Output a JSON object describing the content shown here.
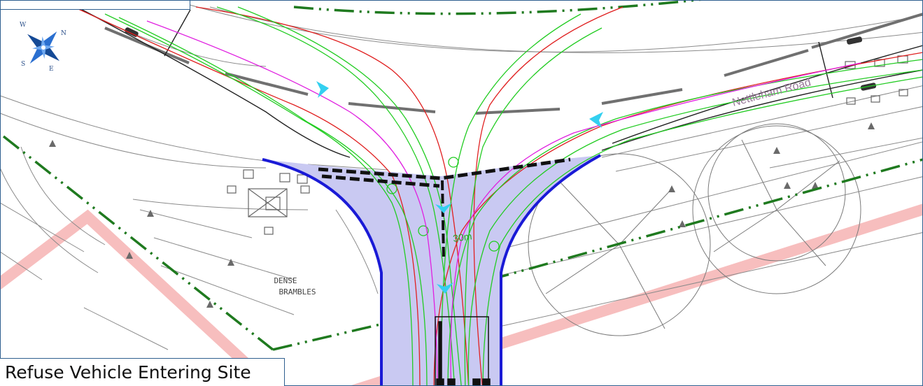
{
  "caption": "Refuse Vehicle Entering Site",
  "labels": {
    "road_name": "Nettleham Road",
    "vegetation_line1": "DENSE",
    "vegetation_line2": "BRAMBLES",
    "dimension": "30m"
  },
  "compass": {
    "north": "N",
    "south": "S",
    "east": "E",
    "west": "W"
  },
  "colors": {
    "kerb_line": "#1a1ad6",
    "junction_fill": "#c9c9f2",
    "swept_path_green": "#22cc22",
    "swept_path_red": "#e02020",
    "centreline_magenta": "#e020e0",
    "boundary_dashdot": "#1f7a1f",
    "site_boundary_pink": "#f4a8a8",
    "direction_arrow": "#33d0f0",
    "frame_border": "#2f5f8f"
  }
}
